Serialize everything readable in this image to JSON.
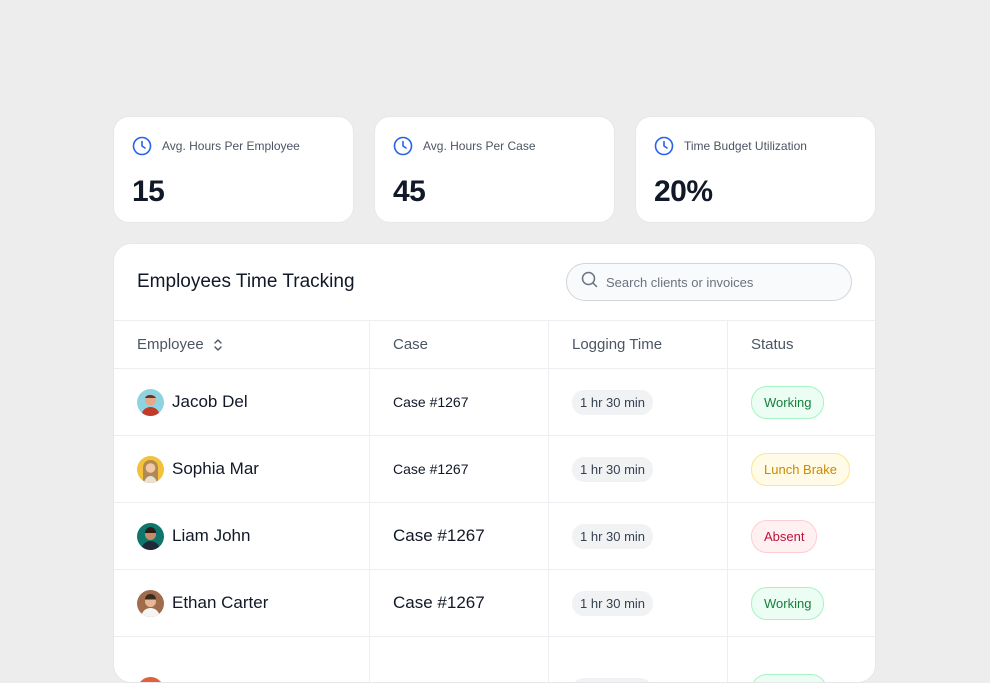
{
  "stats": [
    {
      "label": "Avg. Hours Per Employee",
      "value": "15",
      "icon": "clock-icon"
    },
    {
      "label": "Avg. Hours Per Case",
      "value": "45",
      "icon": "clock-icon"
    },
    {
      "label": "Time Budget Utilization",
      "value": "20%",
      "icon": "clock-icon"
    }
  ],
  "table": {
    "title": "Employees Time Tracking",
    "search_placeholder": "Search clients or invoices",
    "columns": [
      "Employee",
      "Case",
      "Logging Time",
      "Status"
    ],
    "rows": [
      {
        "name": "Jacob Del",
        "case": "Case #1267",
        "time": "1 hr 30 min",
        "status": "Working",
        "status_type": "working"
      },
      {
        "name": "Sophia Mar",
        "case": "Case #1267",
        "time": "1 hr 30 min",
        "status": "Lunch Brake",
        "status_type": "lunch"
      },
      {
        "name": "Liam John",
        "case": "Case #1267",
        "time": "1 hr 30 min",
        "status": "Absent",
        "status_type": "absent"
      },
      {
        "name": "Ethan Carter",
        "case": "Case #1267",
        "time": "1 hr 30 min",
        "status": "Working",
        "status_type": "working"
      }
    ]
  },
  "colors": {
    "accent": "#2563eb",
    "working": "#15803d",
    "lunch": "#ca8a04",
    "absent": "#be123c"
  }
}
